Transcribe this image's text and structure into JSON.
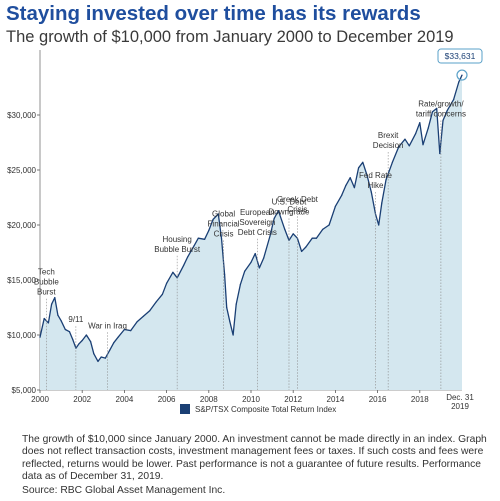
{
  "title": "Staying invested over time has its rewards",
  "subtitle": "The growth of $10,000 from January 2000 to December 2019",
  "footnote": "The growth of $10,000 since January 2000. An investment cannot be made directly in an index. Graph does not reflect transaction costs, investment management fees or taxes. If such costs and fees were reflected, returns would be lower. Past performance is not a guarantee of future results. Performance data as of December 31, 2019.",
  "source": "Source: RBC Global Asset Management Inc.",
  "chart_data": {
    "type": "area",
    "title": "Staying invested over time has its rewards",
    "subtitle": "The growth of $10,000 from January 2000 to December 2019",
    "xlabel": "",
    "ylabel": "",
    "xlim": [
      2000,
      2020
    ],
    "ylim": [
      5000,
      35000
    ],
    "grid": false,
    "legend_position": "bottom",
    "colors": {
      "line": "#1a3f74",
      "fill": "#d4e7ef",
      "title": "#1f4e9e"
    },
    "y_ticks": [
      5000,
      10000,
      15000,
      20000,
      25000,
      30000
    ],
    "y_tick_labels": [
      "$5,000",
      "$10,000",
      "$15,000",
      "$20,000",
      "$25,000",
      "$30,000"
    ],
    "x_ticks": [
      2000,
      2002,
      2004,
      2006,
      2008,
      2010,
      2012,
      2014,
      2016,
      2018
    ],
    "x_tick_labels": [
      "2000",
      "2002",
      "2004",
      "2006",
      "2008",
      "2010",
      "2012",
      "2014",
      "2016",
      "2018"
    ],
    "end_label": "Dec. 31\n2019",
    "series": [
      {
        "name": "S&P/TSX Composite Total Return Index",
        "x": [
          2000.0,
          2000.2,
          2000.4,
          2000.55,
          2000.7,
          2000.85,
          2001.0,
          2001.2,
          2001.4,
          2001.55,
          2001.7,
          2001.85,
          2002.0,
          2002.2,
          2002.4,
          2002.55,
          2002.75,
          2002.9,
          2003.1,
          2003.3,
          2003.5,
          2003.7,
          2004.0,
          2004.3,
          2004.6,
          2004.9,
          2005.2,
          2005.5,
          2005.8,
          2006.0,
          2006.3,
          2006.5,
          2006.8,
          2007.0,
          2007.3,
          2007.5,
          2007.8,
          2008.0,
          2008.2,
          2008.45,
          2008.6,
          2008.75,
          2008.85,
          2009.0,
          2009.15,
          2009.3,
          2009.5,
          2009.7,
          2010.0,
          2010.2,
          2010.4,
          2010.6,
          2010.9,
          2011.1,
          2011.3,
          2011.6,
          2011.8,
          2012.0,
          2012.2,
          2012.4,
          2012.6,
          2012.9,
          2013.1,
          2013.4,
          2013.7,
          2014.0,
          2014.3,
          2014.5,
          2014.7,
          2014.9,
          2015.1,
          2015.3,
          2015.5,
          2015.7,
          2015.9,
          2016.05,
          2016.2,
          2016.4,
          2016.7,
          2017.0,
          2017.3,
          2017.5,
          2017.8,
          2018.0,
          2018.15,
          2018.4,
          2018.6,
          2018.8,
          2018.95,
          2019.1,
          2019.3,
          2019.6,
          2019.85,
          2020.0
        ],
        "values": [
          9800,
          11500,
          11100,
          12800,
          13400,
          11800,
          11300,
          10500,
          10300,
          9600,
          8800,
          9200,
          9500,
          10000,
          9400,
          8300,
          7600,
          8000,
          7900,
          8600,
          9300,
          9800,
          10500,
          10400,
          11200,
          11700,
          12200,
          13000,
          13700,
          14700,
          15700,
          15200,
          16300,
          17100,
          18100,
          18800,
          18700,
          19500,
          20500,
          21000,
          18800,
          15500,
          12500,
          11200,
          10000,
          12800,
          14600,
          15800,
          16600,
          17400,
          16100,
          17000,
          19000,
          20600,
          21300,
          19600,
          18600,
          19200,
          18800,
          17600,
          18000,
          18800,
          18800,
          19600,
          20000,
          21700,
          22700,
          23600,
          24300,
          23400,
          25200,
          25700,
          24500,
          23000,
          21000,
          20000,
          22000,
          24100,
          25700,
          27100,
          27800,
          27200,
          28300,
          29300,
          27300,
          28800,
          30300,
          30600,
          26500,
          29500,
          30400,
          31400,
          33000,
          33631
        ]
      }
    ],
    "annotations": [
      {
        "x": 2000.3,
        "text": "Tech\nBubble\nBurst"
      },
      {
        "x": 2001.7,
        "text": "9/11"
      },
      {
        "x": 2003.2,
        "text": "War in Iraq"
      },
      {
        "x": 2006.5,
        "text": "Housing\nBubble Burst"
      },
      {
        "x": 2008.7,
        "text": "Global\nFinancial\nCrisis"
      },
      {
        "x": 2010.3,
        "text": "European\nSovereign\nDebt Crisis"
      },
      {
        "x": 2011.8,
        "text": "U.S. Debt\nDowngrade"
      },
      {
        "x": 2012.2,
        "text": "Greek Debt\nCrisis"
      },
      {
        "x": 2015.9,
        "text": "Fed Rate\nHike"
      },
      {
        "x": 2016.5,
        "text": "Brexit\nDecision"
      },
      {
        "x": 2019.0,
        "text": "Rate/growth/\ntariff concerns"
      }
    ],
    "end_value_label": "$33,631"
  }
}
